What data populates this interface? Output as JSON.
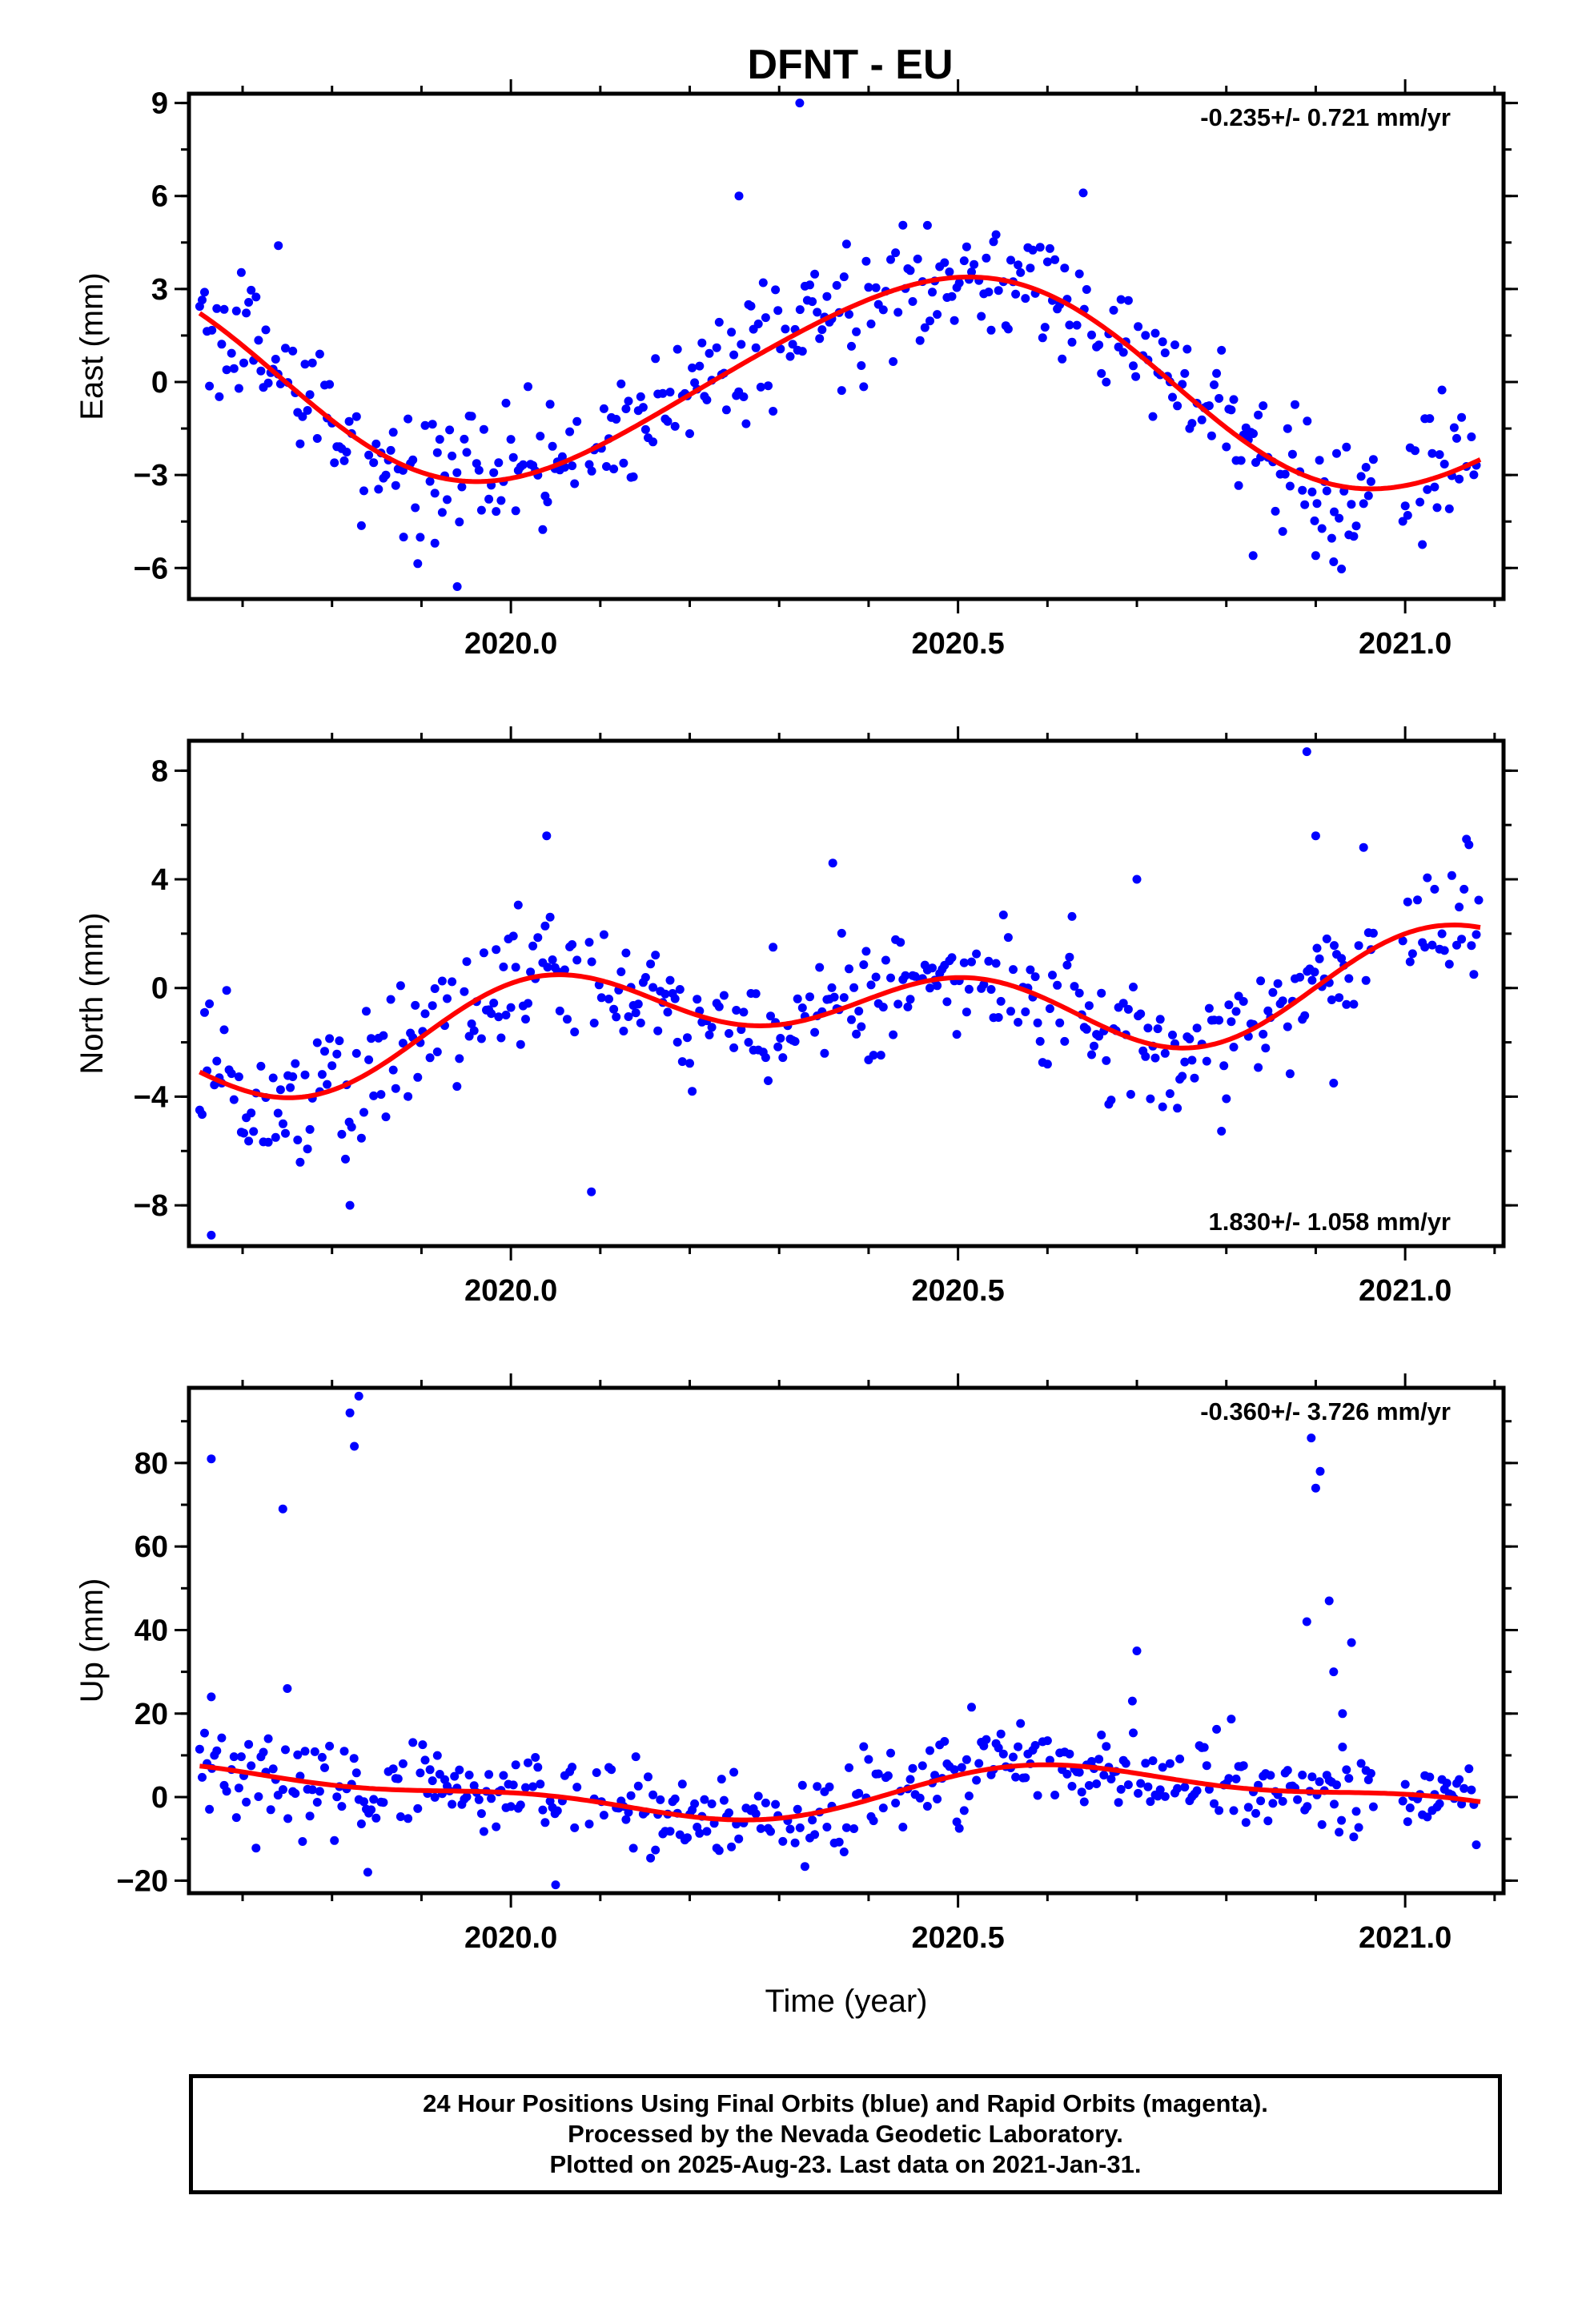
{
  "page_title": "DFNT - EU",
  "colors": {
    "final_orbits": "#0000ff",
    "fit_curve": "#ff0000",
    "frame": "#000000"
  },
  "chart_data": [
    {
      "type": "scatter",
      "component": "east",
      "ylabel": "East (mm)",
      "xlabel": "",
      "xlim": [
        2019.64,
        2021.11
      ],
      "ylim": [
        -7,
        9.3
      ],
      "x_ticks": [
        "2020.0",
        "2020.5",
        "2021.0"
      ],
      "y_ticks": [
        "9",
        "6",
        "3",
        "0",
        "−3",
        "−6"
      ],
      "rate_label": "-0.235+/- 0.721 mm/yr",
      "rate_position": "top-right",
      "fit": {
        "name": "",
        "model": "offset + rate*t + annual + semiannual",
        "offset": 0.1,
        "rate": -0.235,
        "annual_cos": -3.3,
        "annual_sin": 0.3,
        "semi_cos": 0.0,
        "semi_sin": 0.3
      },
      "noise_sd": 1.0,
      "outliers": [
        [
          2020.323,
          9.0
        ],
        [
          2019.94,
          -6.6
        ],
        [
          2020.255,
          6.0
        ],
        [
          2020.64,
          6.1
        ],
        [
          2019.74,
          4.4
        ],
        [
          2020.83,
          -5.6
        ],
        [
          2020.9,
          -5.6
        ],
        [
          2020.92,
          -5.8
        ],
        [
          2019.915,
          -5.2
        ],
        [
          2019.88,
          -5.0
        ]
      ]
    },
    {
      "type": "scatter",
      "component": "north",
      "ylabel": "North (mm)",
      "xlabel": "",
      "xlim": [
        2019.64,
        2021.11
      ],
      "ylim": [
        -9.5,
        9.1
      ],
      "x_ticks": [
        "2020.0",
        "2020.5",
        "2021.0"
      ],
      "y_ticks": [
        "8",
        "4",
        "0",
        "−4",
        "−8"
      ],
      "rate_label": "1.830+/- 1.058 mm/yr",
      "rate_position": "bottom-right",
      "fit": {
        "name": "",
        "model": "offset + rate*t + annual + semiannual",
        "offset": -0.7,
        "rate": 1.83,
        "annual_cos": 0.35,
        "annual_sin": 0.9,
        "semi_cos": 1.25,
        "semi_sin": 0.35
      },
      "noise_sd": 1.2,
      "outliers": [
        [
          2019.665,
          -9.1
        ],
        [
          2019.82,
          -8.0
        ],
        [
          2019.815,
          -6.3
        ],
        [
          2020.09,
          -7.5
        ],
        [
          2020.89,
          8.7
        ],
        [
          2020.92,
          -3.5
        ],
        [
          2020.04,
          5.6
        ],
        [
          2020.36,
          4.6
        ],
        [
          2020.7,
          4.0
        ],
        [
          2020.9,
          5.6
        ]
      ]
    },
    {
      "type": "scatter",
      "component": "up",
      "ylabel": "Up (mm)",
      "xlabel": "Time (year)",
      "xlim": [
        2019.64,
        2021.11
      ],
      "ylim": [
        -23,
        98
      ],
      "x_ticks": [
        "2020.0",
        "2020.5",
        "2021.0"
      ],
      "y_ticks": [
        "80",
        "60",
        "40",
        "20",
        "0",
        "−20"
      ],
      "rate_label": "-0.360+/- 3.726 mm/yr",
      "rate_position": "top-right",
      "fit": {
        "name": "",
        "model": "offset + rate*t + annual + semiannual",
        "offset": 1.2,
        "rate": -0.36,
        "annual_cos": -2.2,
        "annual_sin": -4.8,
        "semi_cos": 1.9,
        "semi_sin": 1.5
      },
      "noise_sd": 5.0,
      "outliers": [
        [
          2019.665,
          81
        ],
        [
          2019.745,
          69
        ],
        [
          2019.82,
          92
        ],
        [
          2019.825,
          84
        ],
        [
          2019.83,
          96
        ],
        [
          2019.75,
          26
        ],
        [
          2019.665,
          24
        ],
        [
          2020.7,
          35
        ],
        [
          2020.695,
          23
        ],
        [
          2020.89,
          42
        ],
        [
          2020.895,
          86
        ],
        [
          2020.9,
          74
        ],
        [
          2020.905,
          78
        ],
        [
          2020.915,
          47
        ],
        [
          2020.92,
          30
        ],
        [
          2020.93,
          20
        ],
        [
          2020.94,
          37
        ],
        [
          2020.93,
          12
        ],
        [
          2019.84,
          -18
        ],
        [
          2020.05,
          -21
        ]
      ]
    }
  ],
  "footer": {
    "line1": "24 Hour Positions Using Final Orbits (blue) and Rapid Orbits (magenta).",
    "line2": "Processed by the Nevada Geodetic Laboratory.",
    "line3": "Plotted on 2025-Aug-23. Last data on 2021-Jan-31."
  }
}
